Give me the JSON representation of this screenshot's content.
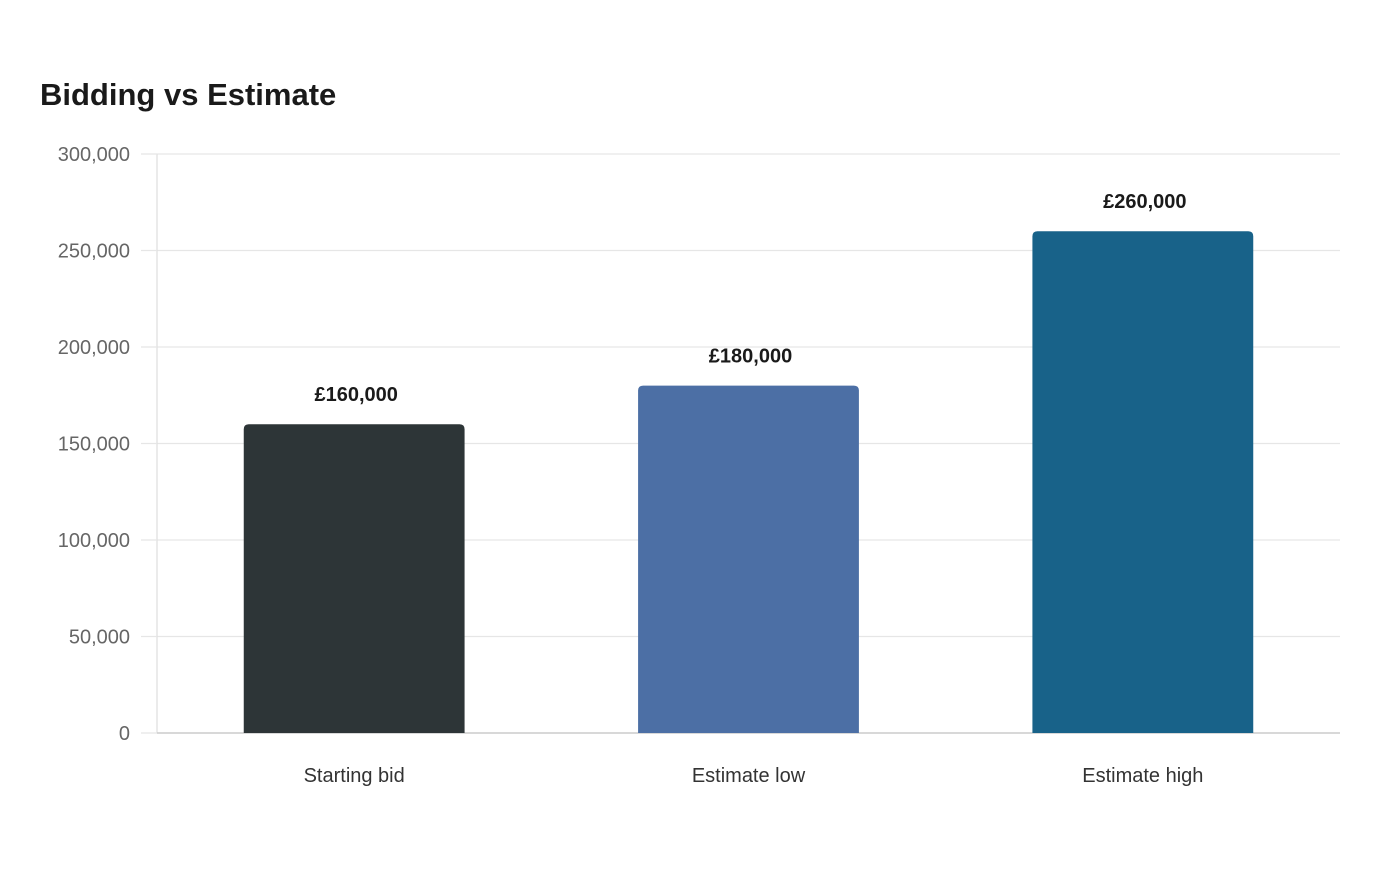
{
  "chart_data": {
    "type": "bar",
    "title": "Bidding vs Estimate",
    "categories": [
      "Starting bid",
      "Estimate low",
      "Estimate high"
    ],
    "values": [
      160000,
      180000,
      260000
    ],
    "value_labels": [
      "£160,000",
      "£180,000",
      "£260,000"
    ],
    "bar_colors": [
      "#2d3537",
      "#4c6fa5",
      "#186289"
    ],
    "ylim": [
      0,
      300000
    ],
    "yticks": [
      0,
      50000,
      100000,
      150000,
      200000,
      250000,
      300000
    ],
    "ytick_labels": [
      "0",
      "50,000",
      "100,000",
      "150,000",
      "200,000",
      "250,000",
      "300,000"
    ],
    "grid": true,
    "legend": "none"
  }
}
